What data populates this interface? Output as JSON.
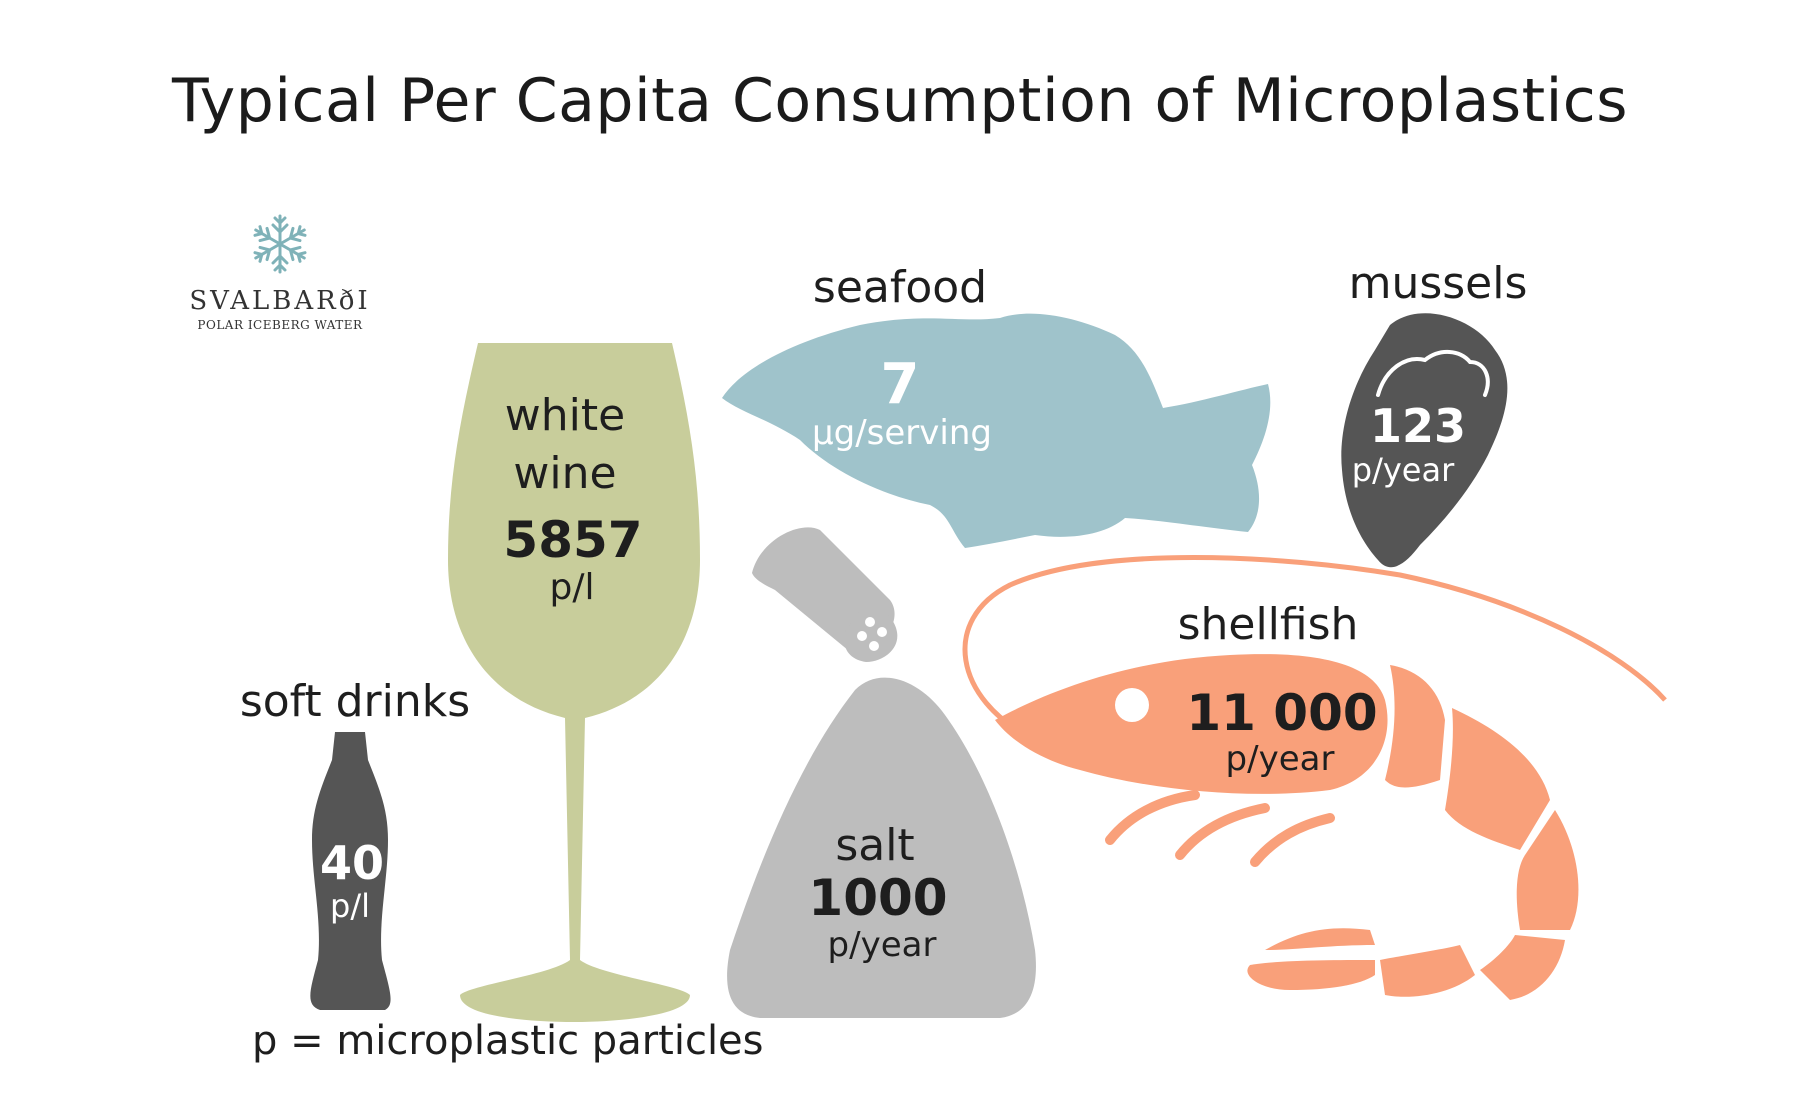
{
  "title": "Typical Per Capita Consumption of Microplastics",
  "logo": {
    "name": "SVALBARðI",
    "tagline": "POLAR ICEBERG WATER",
    "icon": "snowflake-icon"
  },
  "items": {
    "wine": {
      "label_line1": "white",
      "label_line2": "wine",
      "value": "5857",
      "unit": "p/l",
      "color": "#c8cd9b",
      "icon": "wine-glass-icon"
    },
    "seafood": {
      "label": "seafood",
      "value": "7",
      "unit": "µg/serving",
      "color": "#9fc3cb",
      "icon": "fish-icon"
    },
    "mussels": {
      "label": "mussels",
      "value": "123",
      "unit": "p/year",
      "color": "#555555",
      "icon": "mussel-icon"
    },
    "shellfish": {
      "label": "shellfish",
      "value": "11 000",
      "unit": "p/year",
      "color": "#f9a07a",
      "icon": "shrimp-icon"
    },
    "soft": {
      "label": "soft drinks",
      "value": "40",
      "unit": "p/l",
      "color": "#555555",
      "icon": "bottle-icon"
    },
    "salt": {
      "label": "salt",
      "value": "1000",
      "unit": "p/year",
      "color": "#bdbdbd",
      "icon": "salt-shaker-icon"
    }
  },
  "footnote": "p = microplastic particles"
}
